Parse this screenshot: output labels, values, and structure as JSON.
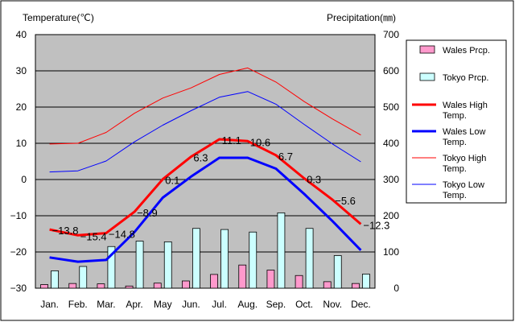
{
  "chart_data": {
    "type": "bar",
    "left_axis_title": "Temperature(℃)",
    "right_axis_title": "Precipitation(㎜)",
    "categories": [
      "Jan.",
      "Feb.",
      "Mar.",
      "Apr.",
      "May",
      "Jun.",
      "Jul.",
      "Aug.",
      "Sep.",
      "Oct.",
      "Nov.",
      "Dec."
    ],
    "ylim_left": [
      -30,
      40
    ],
    "ylim_right": [
      0,
      700
    ],
    "left_ticks": [
      "40",
      "30",
      "20",
      "10",
      "0",
      "−10",
      "−20",
      "−30"
    ],
    "right_ticks": [
      "700",
      "600",
      "500",
      "400",
      "300",
      "200",
      "100",
      "0"
    ],
    "grid": true,
    "plot_background": "#c0c0c0",
    "legend_position": "right",
    "series": [
      {
        "name": "Wales Prcp.",
        "kind": "bar",
        "axis": "right",
        "color": "#ff99cc",
        "values": [
          10,
          13,
          12,
          6,
          14,
          20,
          38,
          64,
          50,
          35,
          18,
          13
        ]
      },
      {
        "name": "Tokyo Prcp.",
        "kind": "bar",
        "axis": "right",
        "color": "#ccffff",
        "values": [
          48,
          60,
          115,
          130,
          128,
          165,
          162,
          155,
          208,
          165,
          90,
          39
        ]
      },
      {
        "name": "Wales High Temp.",
        "kind": "line",
        "axis": "left",
        "color": "#ff0000",
        "width": 3,
        "values": [
          -13.8,
          -15.4,
          -14.8,
          -8.9,
          0.1,
          6.3,
          11.1,
          10.6,
          6.7,
          0.3,
          -5.6,
          -12.3
        ]
      },
      {
        "name": "Wales Low Temp.",
        "kind": "line",
        "axis": "left",
        "color": "#0000ff",
        "width": 3,
        "values": [
          -21.5,
          -22.7,
          -22.2,
          -14.5,
          -5,
          0.8,
          6,
          6,
          3,
          -4,
          -11.5,
          -19.5
        ]
      },
      {
        "name": "Tokyo High Temp.",
        "kind": "line",
        "axis": "left",
        "color": "#ff0000",
        "width": 1,
        "values": [
          9.8,
          10,
          13,
          18.3,
          22.5,
          25.3,
          29,
          30.8,
          26.9,
          21.5,
          16.7,
          12.3
        ]
      },
      {
        "name": "Tokyo Low Temp.",
        "kind": "line",
        "axis": "left",
        "color": "#0000ff",
        "width": 1,
        "values": [
          2.1,
          2.4,
          5.1,
          10.4,
          15,
          19,
          22.7,
          24.3,
          20.8,
          15.2,
          9.8,
          4.9
        ]
      }
    ],
    "data_labels": [
      "−13.8",
      "−15.4",
      "−14.8",
      "−8.9",
      "0.1",
      "6.3",
      "11.1",
      "10.6",
      "6.7",
      "0.3",
      "−5.6",
      "−12.3"
    ]
  }
}
